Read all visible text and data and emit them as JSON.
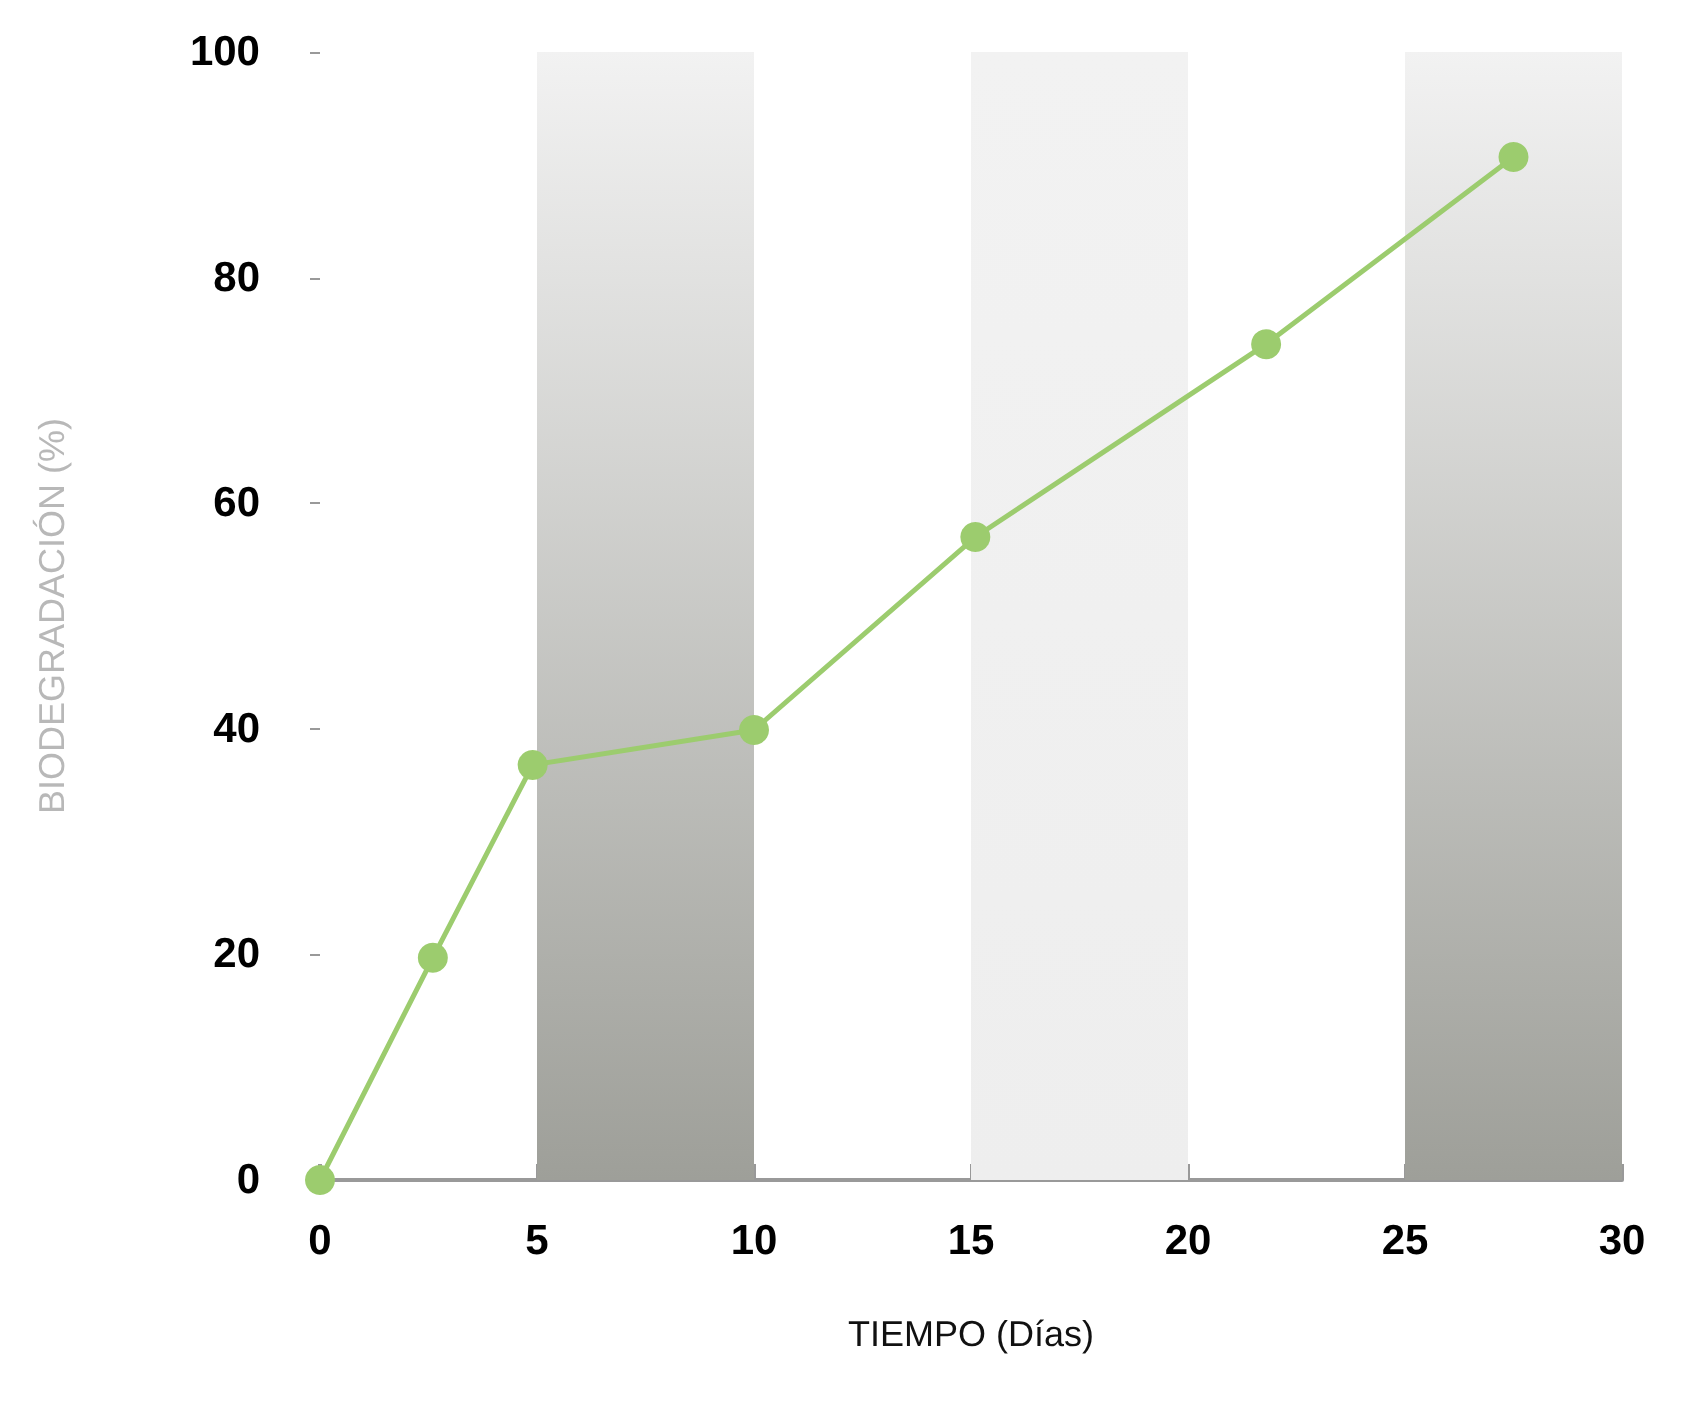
{
  "chart_data": {
    "type": "line",
    "xlabel": "TIEMPO (Días)",
    "ylabel": "BIODEGRADACIÓN (%)",
    "x": [
      0,
      2.6,
      4.9,
      10,
      15.1,
      21.8,
      27.5
    ],
    "series": [
      {
        "color": "#9ccc6e",
        "values": [
          0,
          19.7,
          36.8,
          39.9,
          57,
          74.1,
          90.7
        ]
      }
    ],
    "xlim": [
      0,
      30
    ],
    "xticks": [
      0,
      5,
      10,
      15,
      20,
      25,
      30
    ],
    "ylim": [
      0,
      100
    ],
    "yticks": [
      0,
      20,
      40,
      60,
      80,
      100
    ],
    "bands": [
      {
        "axis": "x",
        "from": 5,
        "to": 10,
        "color": "#9e9f99"
      },
      {
        "axis": "x",
        "from": 15,
        "to": 20,
        "color": "#eeeeee"
      },
      {
        "axis": "x",
        "from": 25,
        "to": 30,
        "color": "#9e9f99"
      }
    ],
    "marker": "circle",
    "line_style": "solid"
  }
}
